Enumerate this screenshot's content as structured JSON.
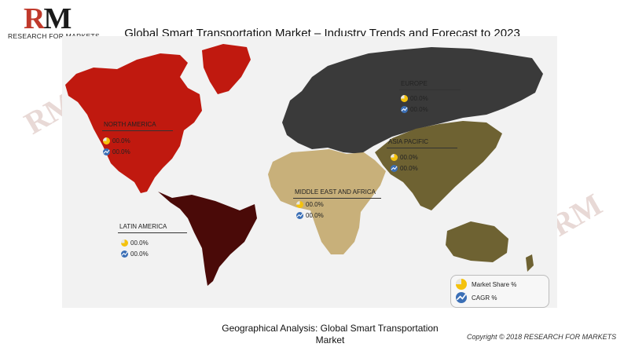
{
  "logo": {
    "letters_r": "R",
    "letters_m": "M",
    "subtitle": "RESEARCH FOR MARKETS"
  },
  "title": "Global Smart Transportation Market – Industry Trends and Forecast to 2023",
  "regions": {
    "north_america": {
      "name": "NORTH AMERICA",
      "market_share": "00.0%",
      "cagr": "00.0%",
      "color": "#c0190f"
    },
    "europe": {
      "name": "EUROPE",
      "market_share": "00.0%",
      "cagr": "00.0%",
      "color": "#3a3a3a"
    },
    "asia_pacific": {
      "name": "ASIA PACIFIC",
      "market_share": "00.0%",
      "cagr": "00.0%",
      "color": "#6e6232"
    },
    "middle_east_africa": {
      "name": "MIDDLE EAST AND AFRICA",
      "market_share": "00.0%",
      "cagr": "00.0%",
      "color": "#c8b07a"
    },
    "latin_america": {
      "name": "LATIN AMERICA",
      "market_share": "00.0%",
      "cagr": "00.0%",
      "color": "#4a0a08"
    }
  },
  "legend": {
    "market_share": "Market Share %",
    "cagr": "CAGR %"
  },
  "caption": "Geographical Analysis: Global Smart Transportation Market",
  "copyright": "Copyright © 2018 RESEARCH FOR MARKETS"
}
